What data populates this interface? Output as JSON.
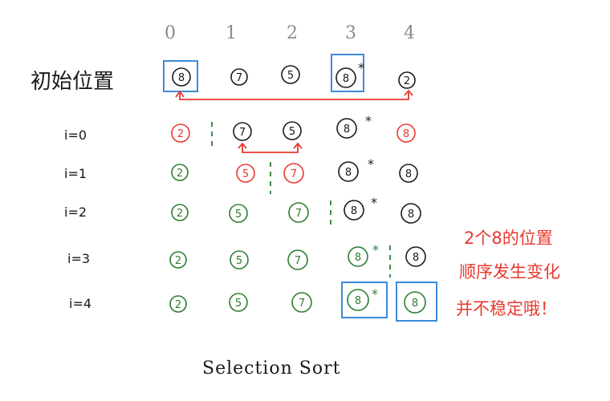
{
  "column_indices": [
    "0",
    "1",
    "2",
    "3",
    "4"
  ],
  "initial_label": "初始位置",
  "initial_row": [
    "8",
    "7",
    "5",
    "8",
    "2"
  ],
  "star": "*",
  "rows": [
    {
      "label": "i=0",
      "values": [
        "2",
        "7",
        "5",
        "8",
        "8"
      ]
    },
    {
      "label": "i=1",
      "values": [
        "2",
        "5",
        "7",
        "8",
        "8"
      ]
    },
    {
      "label": "i=2",
      "values": [
        "2",
        "5",
        "7",
        "8",
        "8"
      ]
    },
    {
      "label": "i=3",
      "values": [
        "2",
        "5",
        "7",
        "8",
        "8"
      ]
    },
    {
      "label": "i=4",
      "values": [
        "2",
        "5",
        "7",
        "8",
        "8"
      ]
    }
  ],
  "note_lines": [
    "2个8的位置",
    "顺序发生变化",
    "并不稳定哦！"
  ],
  "caption": "Selection Sort",
  "colors": {
    "ink": "#1a1a1a",
    "gray": "#8a8a8a",
    "red": "#e8392f",
    "green": "#2e7d32",
    "blue": "#3d8bd9"
  }
}
